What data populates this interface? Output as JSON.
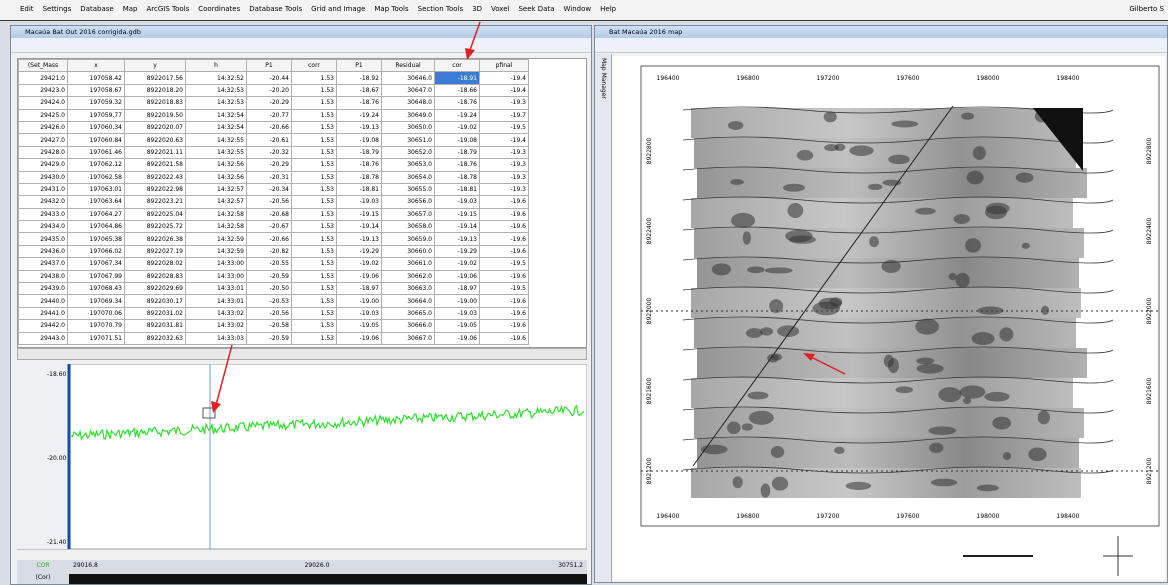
{
  "menu": [
    "Edit",
    "Settings",
    "Database",
    "Map",
    "ArcGIS Tools",
    "Coordinates",
    "Database Tools",
    "Grid and Image",
    "Map Tools",
    "Section Tools",
    "3D",
    "Voxel",
    "Seek Data",
    "Window",
    "Help"
  ],
  "user": "Gilberto S",
  "database_window": {
    "title": "Macaúa Bat Out 2016 corrigida.gdb",
    "columns": [
      "(Set_Mass",
      "x",
      "y",
      "h",
      "P1",
      "corr",
      "P1",
      "Residual",
      "cor",
      "pfinal"
    ],
    "rows": [
      [
        "29421.0",
        "197058.42",
        "8922017.56",
        "14:32:52",
        "-20.44",
        "1.53",
        "-18.92",
        "30646.0",
        "-18.91",
        "-19.4"
      ],
      [
        "29423.0",
        "197058.67",
        "8922018.20",
        "14:32:53",
        "-20.20",
        "1.53",
        "-18.67",
        "30647.0",
        "-18.66",
        "-19.4"
      ],
      [
        "29424.0",
        "197059.32",
        "8922018.83",
        "14:32:53",
        "-20.29",
        "1.53",
        "-18.76",
        "30648.0",
        "-18.76",
        "-19.3"
      ],
      [
        "29425.0",
        "197059.77",
        "8922019.50",
        "14:32:54",
        "-20.77",
        "1.53",
        "-19.24",
        "30649.0",
        "-19.24",
        "-19.7"
      ],
      [
        "29426.0",
        "197060.34",
        "8922020.07",
        "14:32:54",
        "-20.66",
        "1.53",
        "-19.13",
        "30650.0",
        "-19.02",
        "-19.5"
      ],
      [
        "29427.0",
        "197060.84",
        "8922020.63",
        "14:32:55",
        "-20.61",
        "1.53",
        "-19.08",
        "30651.0",
        "-19.08",
        "-19.4"
      ],
      [
        "29428.0",
        "197061.46",
        "8922021.11",
        "14:32:55",
        "-20.32",
        "1.53",
        "-18.79",
        "30652.0",
        "-18.79",
        "-19.3"
      ],
      [
        "29429.0",
        "197062.12",
        "8922021.58",
        "14:32:56",
        "-20.29",
        "1.53",
        "-18.76",
        "30653.0",
        "-18.76",
        "-19.3"
      ],
      [
        "29430.0",
        "197062.58",
        "8922022.43",
        "14:32:56",
        "-20.31",
        "1.53",
        "-18.78",
        "30654.0",
        "-18.78",
        "-19.3"
      ],
      [
        "29431.0",
        "197063.01",
        "8922022.98",
        "14:32:57",
        "-20.34",
        "1.53",
        "-18.81",
        "30655.0",
        "-18.81",
        "-19.3"
      ],
      [
        "29432.0",
        "197063.64",
        "8922023.21",
        "14:32:57",
        "-20.56",
        "1.53",
        "-19.03",
        "30656.0",
        "-19.03",
        "-19.6"
      ],
      [
        "29433.0",
        "197064.27",
        "8922025.04",
        "14:32:58",
        "-20.68",
        "1.53",
        "-19.15",
        "30657.0",
        "-19.15",
        "-19.6"
      ],
      [
        "29434.0",
        "197064.86",
        "8922025.72",
        "14:32:58",
        "-20.67",
        "1.53",
        "-19.14",
        "30658.0",
        "-19.14",
        "-19.6"
      ],
      [
        "29435.0",
        "197065.38",
        "8922026.38",
        "14:32:59",
        "-20.66",
        "1.53",
        "-19.13",
        "30659.0",
        "-19.13",
        "-19.6"
      ],
      [
        "29436.0",
        "197066.02",
        "8922027.19",
        "14:32:59",
        "-20.82",
        "1.53",
        "-19.29",
        "30660.0",
        "-19.29",
        "-19.6"
      ],
      [
        "29437.0",
        "197067.34",
        "8922028.02",
        "14:33:00",
        "-20.55",
        "1.53",
        "-19.02",
        "30661.0",
        "-19.02",
        "-19.5"
      ],
      [
        "29438.0",
        "197067.99",
        "8922028.83",
        "14:33:00",
        "-20.59",
        "1.53",
        "-19.06",
        "30662.0",
        "-19.06",
        "-19.6"
      ],
      [
        "29439.0",
        "197068.43",
        "8922029.69",
        "14:33:01",
        "-20.50",
        "1.53",
        "-18.97",
        "30663.0",
        "-18.97",
        "-19.5"
      ],
      [
        "29440.0",
        "197069.34",
        "8922030.17",
        "14:33:01",
        "-20.53",
        "1.53",
        "-19.00",
        "30664.0",
        "-19.00",
        "-19.6"
      ],
      [
        "29441.0",
        "197070.06",
        "8922031.02",
        "14:33:02",
        "-20.56",
        "1.53",
        "-19.03",
        "30665.0",
        "-19.03",
        "-19.6"
      ],
      [
        "29442.0",
        "197070.79",
        "8922031.81",
        "14:33:02",
        "-20.58",
        "1.53",
        "-19.05",
        "30666.0",
        "-19.05",
        "-19.6"
      ],
      [
        "29443.0",
        "197071.51",
        "8922032.63",
        "14:33:03",
        "-20.59",
        "1.53",
        "-19.06",
        "30667.0",
        "-19.06",
        "-19.6"
      ]
    ],
    "profile_labels": [
      "-18.60",
      "-20.00",
      "-21.40"
    ],
    "footer": [
      "COR",
      "29016.8",
      "29026.0",
      "30751.2"
    ],
    "footer_channel": "(Cor)"
  },
  "map_window": {
    "title": "Bat Macaúa 2016 map",
    "side_tab": "Map Manager",
    "x_labels": [
      "196400",
      "196800",
      "197200",
      "197600",
      "198000",
      "198400"
    ],
    "y_labels": [
      "8922800",
      "8922400",
      "8922000",
      "8921600",
      "8921200"
    ]
  }
}
